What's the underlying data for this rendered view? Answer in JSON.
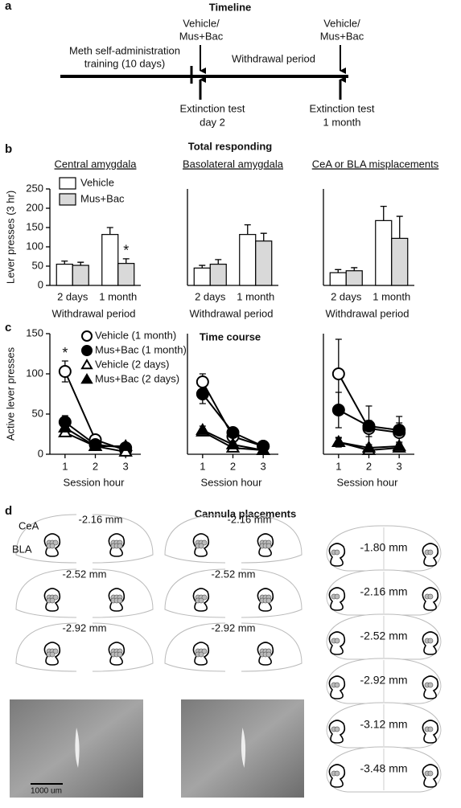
{
  "panel_labels": [
    "a",
    "b",
    "c",
    "d"
  ],
  "timeline": {
    "title": "Timeline",
    "training": [
      "Meth self-administration",
      "training (10 days)"
    ],
    "withdrawal": "Withdrawal period",
    "treatment": [
      "Vehicle/",
      "Mus+Bac"
    ],
    "test1": [
      "Extinction test",
      "day 2"
    ],
    "test2": [
      "Extinction test",
      "1 month"
    ]
  },
  "section_titles": {
    "b": "Total responding",
    "c": "Time course"
  },
  "chart_data": [
    {
      "type": "bar",
      "title": "Central amygdala",
      "ylabel": "Lever presses (3 hr)",
      "xlabel": "Withdrawal period",
      "categories": [
        "2 days",
        "1 month"
      ],
      "ylim": [
        0,
        250
      ],
      "yticks": [
        0,
        50,
        100,
        150,
        200,
        250
      ],
      "series": [
        {
          "name": "Vehicle",
          "color": "#ffffff",
          "values": [
            55,
            132
          ],
          "errors": [
            8,
            18
          ]
        },
        {
          "name": "Mus+Bac",
          "color": "#d9d9d9",
          "values": [
            52,
            57
          ],
          "errors": [
            8,
            12
          ]
        }
      ],
      "annotations": [
        {
          "text": "*",
          "category": 1,
          "series": 1
        }
      ]
    },
    {
      "type": "bar",
      "title": "Basolateral amygdala",
      "xlabel": "Withdrawal period",
      "categories": [
        "2 days",
        "1 month"
      ],
      "ylim": [
        0,
        250
      ],
      "series": [
        {
          "color": "#ffffff",
          "values": [
            45,
            132
          ],
          "errors": [
            7,
            25
          ]
        },
        {
          "color": "#d9d9d9",
          "values": [
            55,
            115
          ],
          "errors": [
            12,
            20
          ]
        }
      ]
    },
    {
      "type": "bar",
      "title": "CeA or BLA misplacements",
      "xlabel": "Withdrawal period",
      "categories": [
        "2 days",
        "1 month"
      ],
      "ylim": [
        0,
        250
      ],
      "series": [
        {
          "color": "#ffffff",
          "values": [
            33,
            168
          ],
          "errors": [
            8,
            37
          ]
        },
        {
          "color": "#d9d9d9",
          "values": [
            38,
            122
          ],
          "errors": [
            8,
            57
          ]
        }
      ]
    },
    {
      "type": "line",
      "ylabel": "Active lever presses",
      "xlabel": "Session hour",
      "x": [
        1,
        2,
        3
      ],
      "xlim": [
        0.5,
        3.5
      ],
      "xticks": [
        1,
        2,
        3
      ],
      "ylim": [
        0,
        150
      ],
      "yticks": [
        0,
        50,
        100,
        150
      ],
      "series": [
        {
          "name": "Vehicle (1 month)",
          "marker": "circle",
          "color": "#ffffff",
          "values": [
            103,
            18,
            5
          ],
          "errors": [
            13,
            3,
            3
          ]
        },
        {
          "name": "Mus+Bac (1 month)",
          "marker": "circle",
          "color": "#000000",
          "values": [
            40,
            12,
            8
          ],
          "errors": [
            8,
            3,
            3
          ]
        },
        {
          "name": "Vehicle (2 days)",
          "marker": "triangle",
          "color": "#ffffff",
          "values": [
            27,
            10,
            3
          ],
          "errors": [
            4,
            3,
            2
          ]
        },
        {
          "name": "Mus+Bac (2 days)",
          "marker": "triangle",
          "color": "#000000",
          "values": [
            33,
            10,
            10
          ],
          "errors": [
            5,
            3,
            3
          ]
        }
      ],
      "annotations": [
        {
          "text": "*",
          "x": 1,
          "series": 0
        }
      ]
    },
    {
      "type": "line",
      "xlabel": "Session hour",
      "x": [
        1,
        2,
        3
      ],
      "xlim": [
        0.5,
        3.5
      ],
      "xticks": [
        1,
        2,
        3
      ],
      "ylim": [
        0,
        150
      ],
      "series": [
        {
          "marker": "circle",
          "color": "#ffffff",
          "values": [
            90,
            22,
            10
          ],
          "errors": [
            10,
            4,
            3
          ]
        },
        {
          "marker": "circle",
          "color": "#000000",
          "values": [
            75,
            27,
            10
          ],
          "errors": [
            12,
            5,
            3
          ]
        },
        {
          "marker": "triangle",
          "color": "#ffffff",
          "values": [
            28,
            8,
            5
          ],
          "errors": [
            4,
            3,
            2
          ]
        },
        {
          "marker": "triangle",
          "color": "#000000",
          "values": [
            30,
            12,
            5
          ],
          "errors": [
            5,
            3,
            2
          ]
        }
      ]
    },
    {
      "type": "line",
      "xlabel": "Session hour",
      "x": [
        1,
        2,
        3
      ],
      "xlim": [
        0.5,
        3.5
      ],
      "xticks": [
        1,
        2,
        3
      ],
      "ylim": [
        0,
        150
      ],
      "series": [
        {
          "marker": "circle",
          "color": "#ffffff",
          "values": [
            100,
            32,
            27
          ],
          "errors": [
            43,
            10,
            12
          ]
        },
        {
          "marker": "circle",
          "color": "#000000",
          "values": [
            55,
            35,
            30
          ],
          "errors": [
            22,
            25,
            17
          ]
        },
        {
          "marker": "triangle",
          "color": "#ffffff",
          "values": [
            15,
            5,
            8
          ],
          "errors": [
            5,
            3,
            4
          ]
        },
        {
          "marker": "triangle",
          "color": "#000000",
          "values": [
            15,
            8,
            10
          ],
          "errors": [
            6,
            4,
            5
          ]
        }
      ]
    }
  ],
  "placements": {
    "title": "Cannula placements",
    "labels": [
      "CeA",
      "BLA"
    ],
    "left_levels": [
      "-2.16 mm",
      "-2.52 mm",
      "-2.92 mm"
    ],
    "right_levels": [
      "-1.80 mm",
      "-2.16 mm",
      "-2.52 mm",
      "-2.92 mm",
      "-3.12 mm",
      "-3.48 mm"
    ],
    "scale_bar": "1000 um"
  }
}
